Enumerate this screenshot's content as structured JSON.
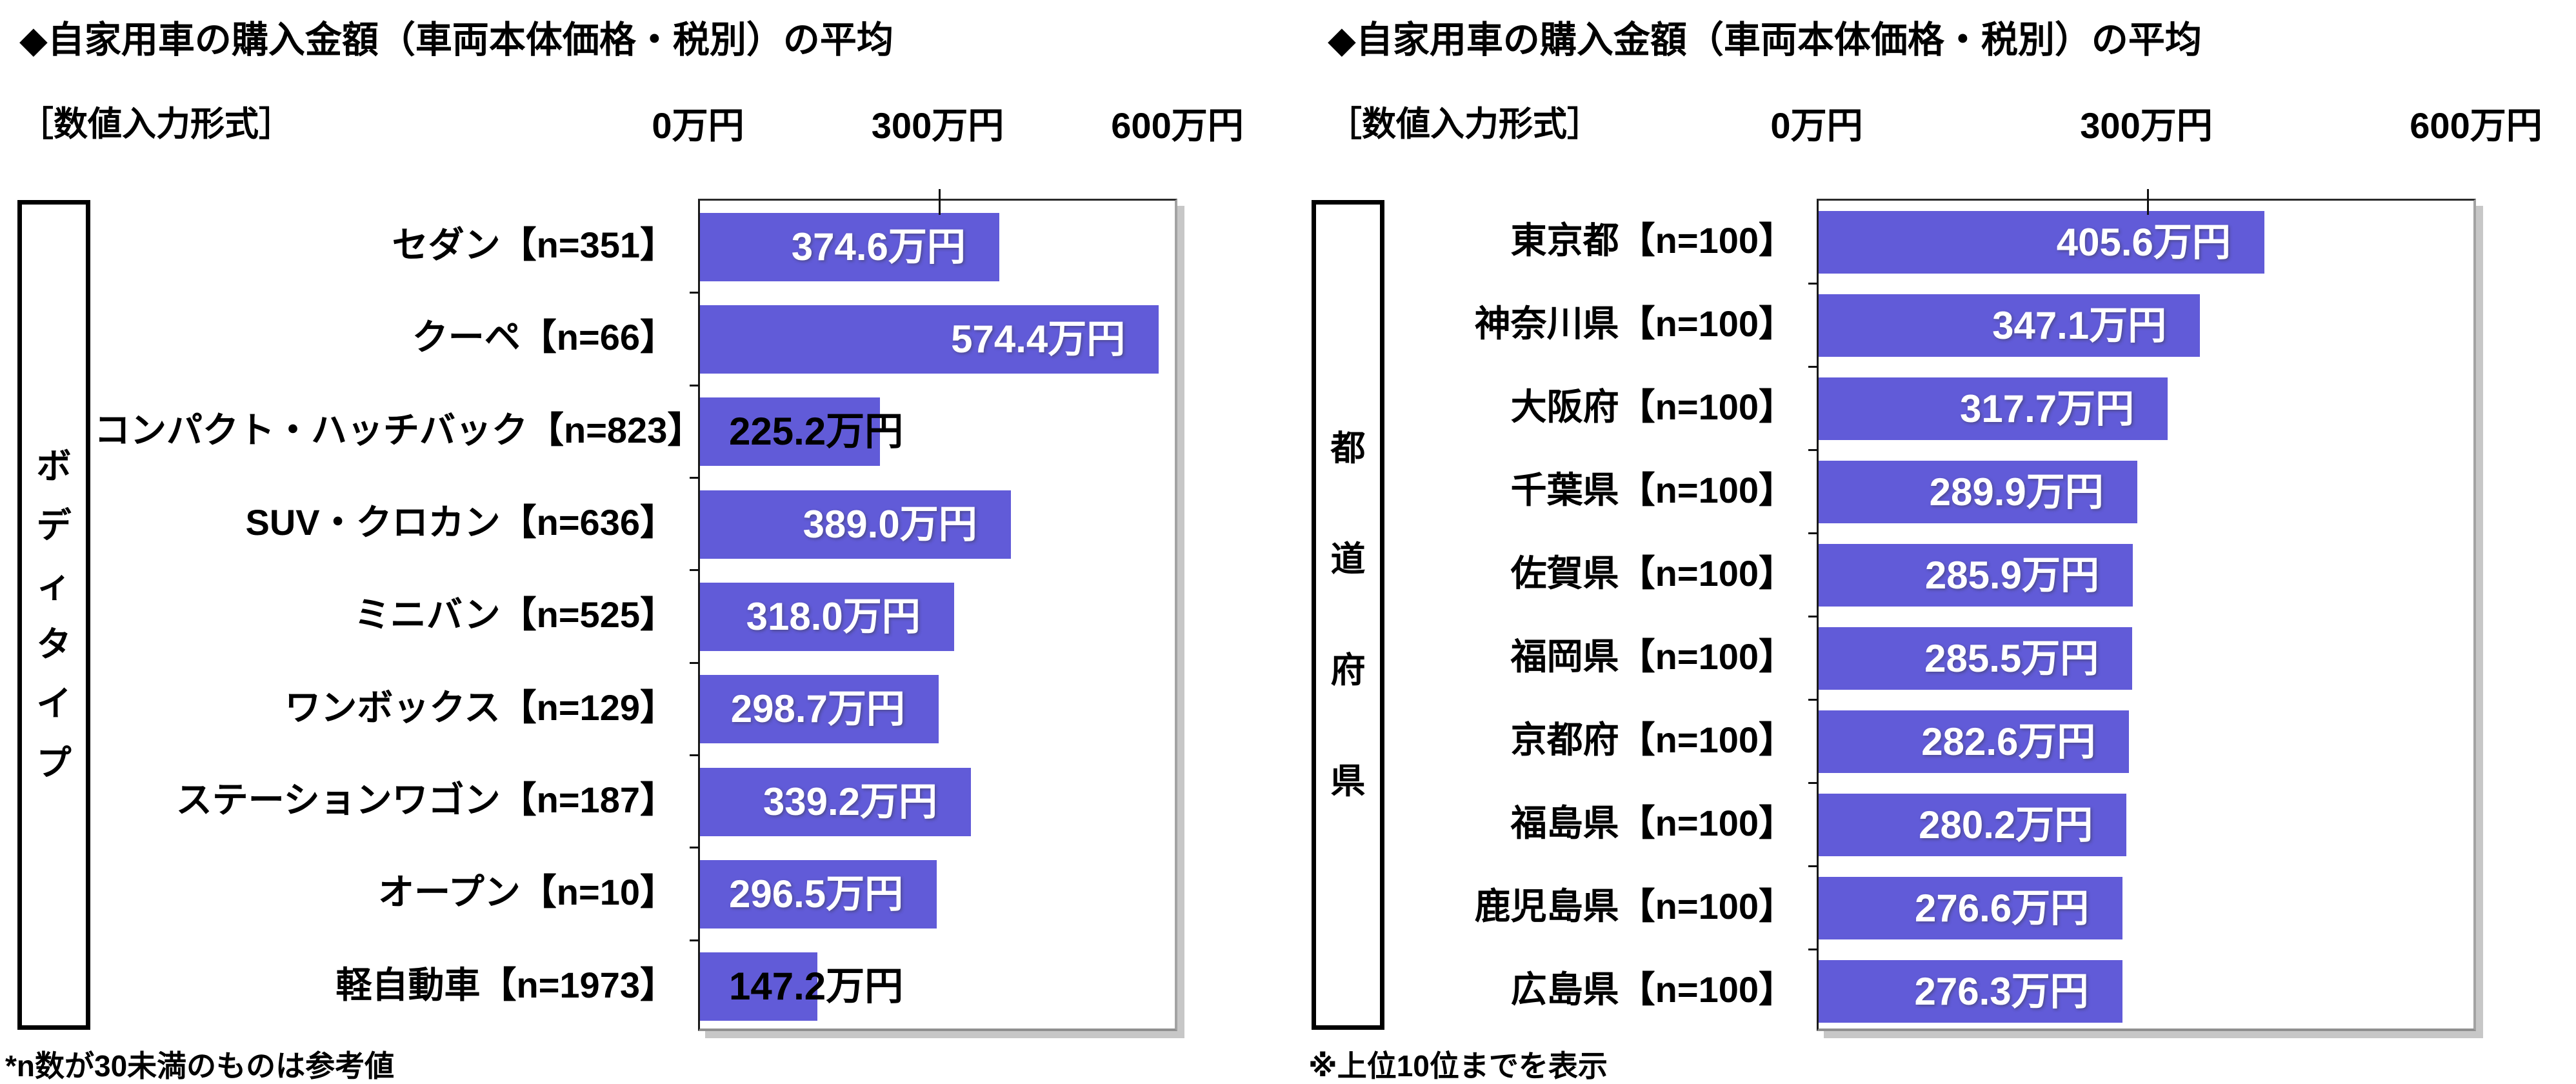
{
  "colors": {
    "bar_fill": "#615BD8",
    "value_label_inside": "#FFFFFF",
    "value_label_outside": "#000000",
    "frame_shadow": "#C7C7C7"
  },
  "chart_data": [
    {
      "type": "bar",
      "orientation": "horizontal",
      "title": "◆自家用車の購入金額（車両本体価格・税別）の平均",
      "subtitle": "［数値入力形式］",
      "group_label": "ボディタイプ",
      "xlabel": "",
      "ylabel": "",
      "axis": {
        "max": 600,
        "tick_values": [
          0,
          300,
          600
        ],
        "tick_labels": [
          "0万円",
          "300万円",
          "600万円"
        ]
      },
      "grid": false,
      "legend": false,
      "categories": [
        "セダン【n=351】",
        "クーペ【n=66】",
        "コンパクト・ハッチバック【n=823】",
        "SUV・クロカン【n=636】",
        "ミニバン【n=525】",
        "ワンボックス【n=129】",
        "ステーションワゴン【n=187】",
        "オープン【n=10】",
        "軽自動車【n=1973】"
      ],
      "values": [
        374.6,
        574.4,
        225.2,
        389.0,
        318.0,
        298.7,
        339.2,
        296.5,
        147.2
      ],
      "value_labels": [
        "374.6万円",
        "574.4万円",
        "225.2万円",
        "389.0万円",
        "318.0万円",
        "298.7万円",
        "339.2万円",
        "296.5万円",
        "147.2万円"
      ],
      "label_styles": [
        "inside",
        "inside",
        "outside",
        "inside",
        "inside",
        "inside",
        "inside",
        "inside",
        "outside"
      ],
      "footnote": "*n数が30未満のものは参考値"
    },
    {
      "type": "bar",
      "orientation": "horizontal",
      "title": "◆自家用車の購入金額（車両本体価格・税別）の平均",
      "subtitle": "［数値入力形式］",
      "group_label": "都道府県",
      "xlabel": "",
      "ylabel": "",
      "axis": {
        "max": 600,
        "tick_values": [
          0,
          300,
          600
        ],
        "tick_labels": [
          "0万円",
          "300万円",
          "600万円"
        ]
      },
      "grid": false,
      "legend": false,
      "categories": [
        "東京都【n=100】",
        "神奈川県【n=100】",
        "大阪府【n=100】",
        "千葉県【n=100】",
        "佐賀県【n=100】",
        "福岡県【n=100】",
        "京都府【n=100】",
        "福島県【n=100】",
        "鹿児島県【n=100】",
        "広島県【n=100】"
      ],
      "values": [
        405.6,
        347.1,
        317.7,
        289.9,
        285.9,
        285.5,
        282.6,
        280.2,
        276.6,
        276.3
      ],
      "value_labels": [
        "405.6万円",
        "347.1万円",
        "317.7万円",
        "289.9万円",
        "285.9万円",
        "285.5万円",
        "282.6万円",
        "280.2万円",
        "276.6万円",
        "276.3万円"
      ],
      "label_styles": [
        "inside",
        "inside",
        "inside",
        "inside",
        "inside",
        "inside",
        "inside",
        "inside",
        "inside",
        "inside"
      ],
      "footnote": "※上位10位までを表示"
    }
  ]
}
